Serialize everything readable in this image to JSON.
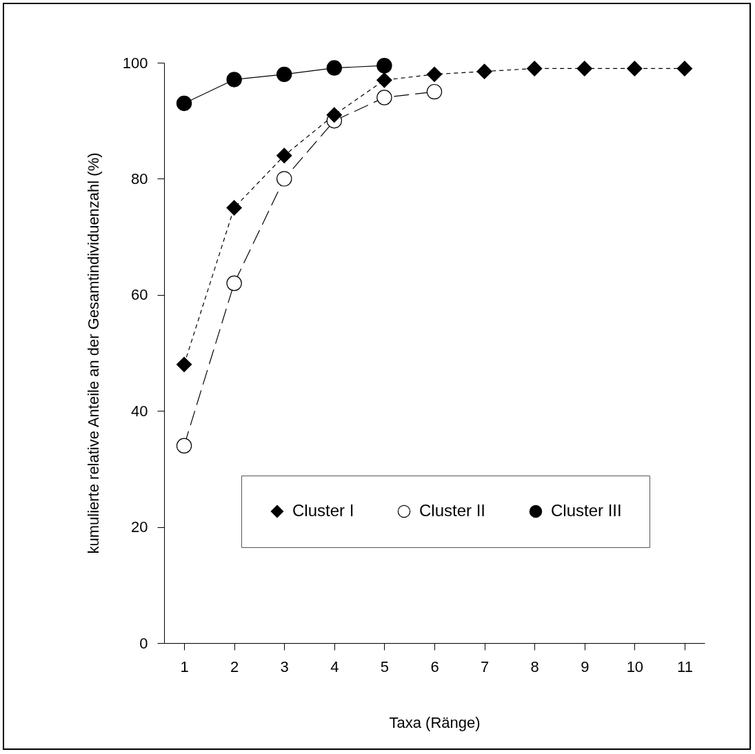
{
  "chart_data": {
    "type": "line",
    "xlabel": "Taxa (Ränge)",
    "ylabel": "kumulierte relative Anteile an der Gesamtindividuenzahl (%)",
    "x": [
      1,
      2,
      3,
      4,
      5,
      6,
      7,
      8,
      9,
      10,
      11
    ],
    "series": [
      {
        "name": "Cluster I",
        "color": "#000000",
        "marker": "diamond",
        "line_style": "dashed",
        "values": [
          48,
          75,
          84,
          91,
          97,
          98,
          98.5,
          99,
          99,
          99,
          99
        ]
      },
      {
        "name": "Cluster II",
        "color": "#000000",
        "marker": "circle-open",
        "line_style": "longdash",
        "values": [
          34,
          62,
          80,
          90,
          94,
          95,
          null,
          null,
          null,
          null,
          null
        ]
      },
      {
        "name": "Cluster III",
        "color": "#000000",
        "marker": "circle",
        "line_style": "solid",
        "values": [
          93,
          97.1,
          98,
          99.1,
          99.5,
          null,
          null,
          null,
          null,
          null,
          null
        ]
      }
    ],
    "xlim": [
      0.6,
      11.4
    ],
    "xticks": [
      1,
      2,
      3,
      4,
      5,
      6,
      7,
      8,
      9,
      10,
      11
    ],
    "ylim": [
      0,
      100
    ],
    "yticks": [
      0,
      20,
      40,
      60,
      80,
      100
    ],
    "grid": false,
    "legend": "bottom right"
  }
}
